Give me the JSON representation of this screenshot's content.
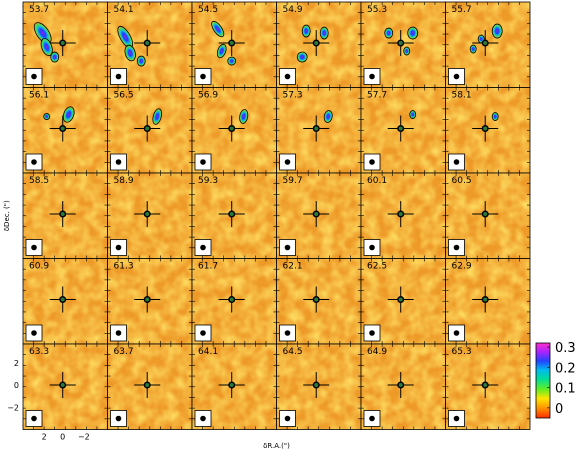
{
  "chart_data": {
    "type": "heatmap",
    "panel_velocities": [
      "53.7",
      "54.1",
      "54.5",
      "54.9",
      "55.3",
      "55.7",
      "56.1",
      "56.5",
      "56.9",
      "57.3",
      "57.7",
      "58.1",
      "58.5",
      "58.9",
      "59.3",
      "59.7",
      "60.1",
      "60.5",
      "60.9",
      "61.3",
      "61.7",
      "62.1",
      "62.5",
      "62.9",
      "63.3",
      "63.7",
      "64.1",
      "64.5",
      "64.9",
      "65.3"
    ],
    "rows": 5,
    "cols": 6,
    "xlabel": "δR.A.(\")",
    "ylabel": "δDec. (\")",
    "x_tick_labels": [
      "2",
      "0",
      "−2"
    ],
    "y_tick_labels": [
      "2",
      "0",
      "−2"
    ],
    "x_range": [
      3.6,
      -3.6
    ],
    "y_range": [
      -3.6,
      3.6
    ],
    "colorbar": {
      "ticks": [
        "0.3",
        "0.2",
        "0.1",
        "0"
      ],
      "tick_values": [
        0.3,
        0.2,
        0.1,
        0.0
      ],
      "range": [
        -0.05,
        0.32
      ]
    },
    "colors": {
      "background": "#ee9a28",
      "marker": "#000000"
    }
  }
}
